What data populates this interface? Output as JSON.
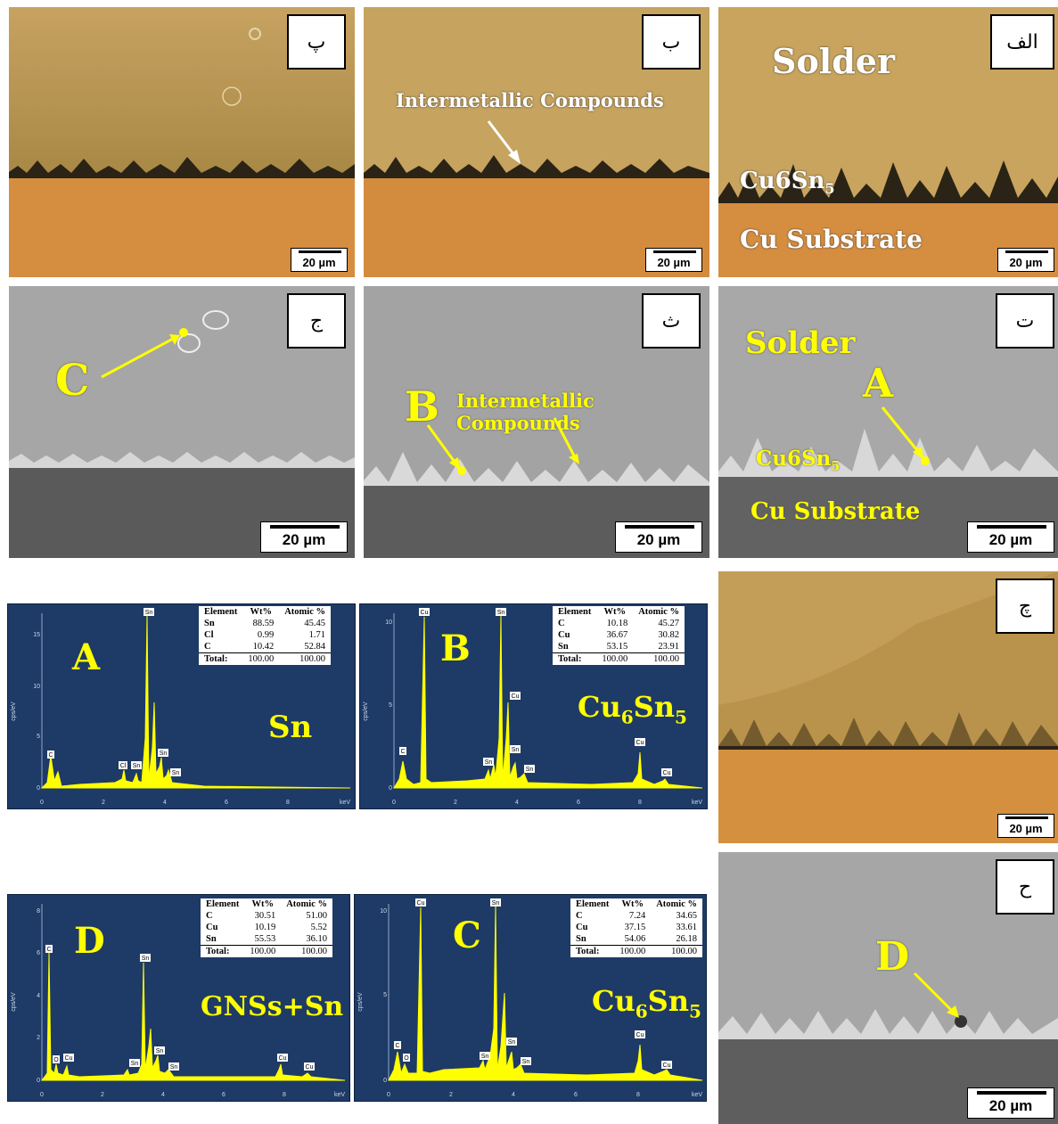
{
  "panels": {
    "p_opt": {
      "tag": "پ",
      "scale": "20 µm"
    },
    "b_opt": {
      "tag": "ب",
      "scale": "20 µm",
      "label_imc": "Intermetallic Compounds"
    },
    "alef_opt": {
      "tag": "الف",
      "scale": "20 µm",
      "label_solder": "Solder",
      "label_cu6sn5_base": "Cu6Sn",
      "label_cu6sn5_sub": "5",
      "label_substrate": "Cu Substrate"
    },
    "j_sem": {
      "tag": "ج",
      "scale": "20 µm",
      "point": "C"
    },
    "th_sem": {
      "tag": "ث",
      "scale": "20 µm",
      "point": "B",
      "label_imc": "Intermetallic Compounds"
    },
    "t_sem": {
      "tag": "ت",
      "scale": "20 µm",
      "label_solder": "Solder",
      "point": "A",
      "label_cu6sn5_base": "Cu6Sn",
      "label_cu6sn5_sub": "5",
      "label_substrate": "Cu Substrate"
    },
    "ch_opt": {
      "tag": "چ",
      "scale": "20 µm"
    },
    "h_sem": {
      "tag": "ح",
      "scale": "20 µm",
      "point": "D"
    }
  },
  "eds": {
    "A": {
      "letter": "A",
      "phase_base": "Sn",
      "phase_sub": "",
      "phase_tail": "",
      "yticks": [
        "0",
        "5",
        "10",
        "15"
      ],
      "xticks": [
        "0",
        "2",
        "4",
        "6",
        "8",
        "keV"
      ],
      "yunit": "cps/eV",
      "peaks": [
        "C",
        "Sn",
        "Cl",
        "Sn",
        "Sn",
        "Sn"
      ],
      "table": {
        "header": [
          "Element",
          "Wt%",
          "Atomic %"
        ],
        "rows": [
          [
            "Sn",
            "88.59",
            "45.45"
          ],
          [
            "Cl",
            "0.99",
            "1.71"
          ],
          [
            "C",
            "10.42",
            "52.84"
          ]
        ],
        "total": [
          "Total:",
          "100.00",
          "100.00"
        ]
      }
    },
    "B": {
      "letter": "B",
      "phase_base": "Cu",
      "phase_sub": "6",
      "phase_tail": "Sn",
      "phase_sub2": "5",
      "yticks": [
        "0",
        "5",
        "10"
      ],
      "xticks": [
        "0",
        "2",
        "4",
        "6",
        "8",
        "keV"
      ],
      "yunit": "cps/eV",
      "peaks": [
        "C",
        "Cu",
        "Sn",
        "Sn",
        "Cu",
        "Sn",
        "Sn",
        "Cu",
        "Cu"
      ],
      "table": {
        "header": [
          "Element",
          "Wt%",
          "Atomic %"
        ],
        "rows": [
          [
            "C",
            "10.18",
            "45.27"
          ],
          [
            "Cu",
            "36.67",
            "30.82"
          ],
          [
            "Sn",
            "53.15",
            "23.91"
          ]
        ],
        "total": [
          "Total:",
          "100.00",
          "100.00"
        ]
      }
    },
    "D": {
      "letter": "D",
      "phase_base": "GNSs+Sn",
      "phase_sub": "",
      "phase_tail": "",
      "yticks": [
        "0",
        "2",
        "4",
        "6",
        "8"
      ],
      "xticks": [
        "0",
        "2",
        "4",
        "6",
        "8",
        "keV"
      ],
      "yunit": "cps/eV",
      "peaks": [
        "C",
        "O",
        "Cu",
        "Sn",
        "Sn",
        "Sn",
        "Sn",
        "Cu",
        "Cu"
      ],
      "table": {
        "header": [
          "Element",
          "Wt%",
          "Atomic %"
        ],
        "rows": [
          [
            "C",
            "30.51",
            "51.00"
          ],
          [
            "Cu",
            "10.19",
            "5.52"
          ],
          [
            "Sn",
            "55.53",
            "36.10"
          ]
        ],
        "total": [
          "Total:",
          "100.00",
          "100.00"
        ]
      }
    },
    "C": {
      "letter": "C",
      "phase_base": "Cu",
      "phase_sub": "6",
      "phase_tail": "Sn",
      "phase_sub2": "5",
      "yticks": [
        "0",
        "5",
        "10"
      ],
      "xticks": [
        "0",
        "2",
        "4",
        "6",
        "8",
        "keV"
      ],
      "yunit": "cps/eV",
      "peaks": [
        "C",
        "O",
        "Cu",
        "Sn",
        "Sn",
        "Sn",
        "Sn",
        "Cu",
        "Cu"
      ],
      "table": {
        "header": [
          "Element",
          "Wt%",
          "Atomic %"
        ],
        "rows": [
          [
            "C",
            "7.24",
            "34.65"
          ],
          [
            "Cu",
            "37.15",
            "33.61"
          ],
          [
            "Sn",
            "54.06",
            "26.18"
          ]
        ],
        "total": [
          "Total:",
          "100.00",
          "100.00"
        ]
      }
    }
  }
}
